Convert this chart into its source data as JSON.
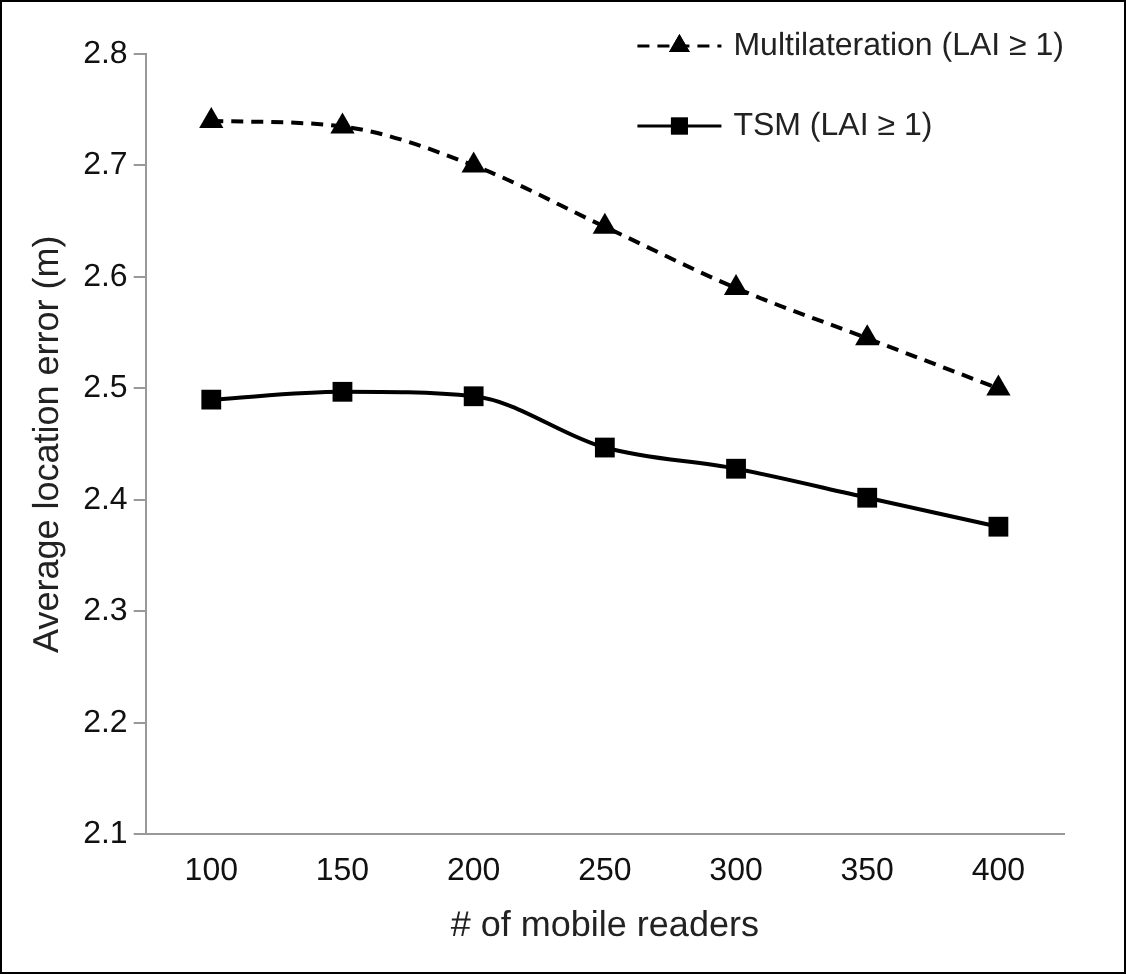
{
  "chart_data": {
    "type": "line",
    "xlabel": "# of mobile readers",
    "ylabel": "Average location error (m)",
    "categories": [
      "100",
      "150",
      "200",
      "250",
      "300",
      "350",
      "400"
    ],
    "series": [
      {
        "name": "Multilateration (LAI ≥ 1)",
        "color": "#000000",
        "marker": "triangle",
        "line_style": "dashed",
        "values": [
          2.74,
          2.735,
          2.7,
          2.645,
          2.59,
          2.545,
          2.5
        ]
      },
      {
        "name": "TSM (LAI ≥ 1)",
        "color": "#000000",
        "marker": "square",
        "line_style": "solid",
        "values": [
          2.49,
          2.497,
          2.493,
          2.447,
          2.428,
          2.402,
          2.376
        ]
      }
    ],
    "ylim": [
      2.1,
      2.8
    ],
    "yticks": [
      {
        "value": 2.1,
        "label": "2.1"
      },
      {
        "value": 2.2,
        "label": "2.2"
      },
      {
        "value": 2.3,
        "label": "2.3"
      },
      {
        "value": 2.4,
        "label": "2.4"
      },
      {
        "value": 2.5,
        "label": "2.5"
      },
      {
        "value": 2.6,
        "label": "2.6"
      },
      {
        "value": 2.7,
        "label": "2.7"
      },
      {
        "value": 2.8,
        "label": "2.8"
      }
    ],
    "grid": false,
    "legend": "top right"
  }
}
